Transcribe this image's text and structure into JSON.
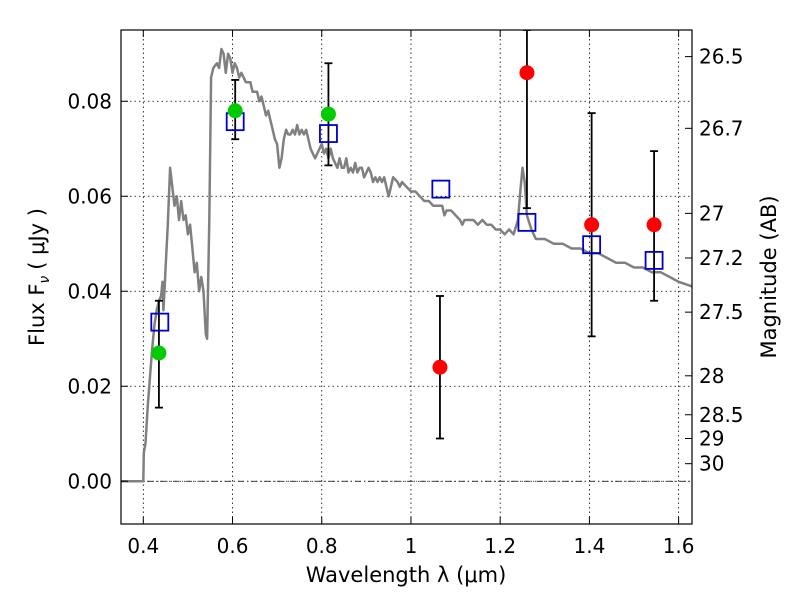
{
  "chart_data": {
    "type": "scatter",
    "xlabel": "Wavelength  λ (μm)",
    "ylabel": "Flux  F",
    "ylabel_sub": "ν",
    "ylabel_unit": "(  μJy )",
    "y2label": "Magnitude (AB)",
    "xlim": [
      0.35,
      1.63
    ],
    "ylim": [
      -0.009,
      0.095
    ],
    "xticks": [
      {
        "value": 0.4,
        "label": "0.4"
      },
      {
        "value": 0.6,
        "label": "0.6"
      },
      {
        "value": 0.8,
        "label": "0.8"
      },
      {
        "value": 1.0,
        "label": "1"
      },
      {
        "value": 1.2,
        "label": "1.2"
      },
      {
        "value": 1.4,
        "label": "1.4"
      },
      {
        "value": 1.6,
        "label": "1.6"
      }
    ],
    "yticks": [
      {
        "value": 0.0,
        "label": "0.00"
      },
      {
        "value": 0.02,
        "label": "0.02"
      },
      {
        "value": 0.04,
        "label": "0.04"
      },
      {
        "value": 0.06,
        "label": "0.06"
      },
      {
        "value": 0.08,
        "label": "0.08"
      }
    ],
    "y2ticks": [
      {
        "flux": 0.0894,
        "label": "26.5"
      },
      {
        "flux": 0.0743,
        "label": "26.7"
      },
      {
        "flux": 0.0564,
        "label": "27"
      },
      {
        "flux": 0.047,
        "label": "27.2"
      },
      {
        "flux": 0.0356,
        "label": "27.5"
      },
      {
        "flux": 0.0222,
        "label": "28"
      },
      {
        "flux": 0.014,
        "label": "28.5"
      },
      {
        "flux": 0.009,
        "label": "29"
      },
      {
        "flux": 0.0037,
        "label": "30"
      }
    ],
    "grid": true,
    "zero_line": true,
    "colors": {
      "model": "#808080",
      "detection": "#00cc00",
      "upper": "#ff0000",
      "model_flux": "#0000cc",
      "errorbar": "#000000"
    },
    "model_spectrum": [
      [
        0.35,
        0.0
      ],
      [
        0.39,
        0.0
      ],
      [
        0.4,
        0.0
      ],
      [
        0.401,
        0.006
      ],
      [
        0.405,
        0.008
      ],
      [
        0.41,
        0.016
      ],
      [
        0.415,
        0.022
      ],
      [
        0.42,
        0.028
      ],
      [
        0.425,
        0.033
      ],
      [
        0.43,
        0.036
      ],
      [
        0.435,
        0.038
      ],
      [
        0.44,
        0.039
      ],
      [
        0.443,
        0.042
      ],
      [
        0.445,
        0.036
      ],
      [
        0.448,
        0.041
      ],
      [
        0.45,
        0.045
      ],
      [
        0.455,
        0.054
      ],
      [
        0.46,
        0.066
      ],
      [
        0.465,
        0.062
      ],
      [
        0.47,
        0.058
      ],
      [
        0.475,
        0.06
      ],
      [
        0.48,
        0.055
      ],
      [
        0.485,
        0.059
      ],
      [
        0.49,
        0.055
      ],
      [
        0.495,
        0.056
      ],
      [
        0.5,
        0.052
      ],
      [
        0.505,
        0.054
      ],
      [
        0.51,
        0.049
      ],
      [
        0.515,
        0.044
      ],
      [
        0.52,
        0.046
      ],
      [
        0.525,
        0.04
      ],
      [
        0.53,
        0.043
      ],
      [
        0.535,
        0.04
      ],
      [
        0.54,
        0.031
      ],
      [
        0.543,
        0.03
      ],
      [
        0.548,
        0.055
      ],
      [
        0.552,
        0.085
      ],
      [
        0.557,
        0.087
      ],
      [
        0.565,
        0.088
      ],
      [
        0.57,
        0.087
      ],
      [
        0.575,
        0.091
      ],
      [
        0.58,
        0.09
      ],
      [
        0.585,
        0.086
      ],
      [
        0.59,
        0.09
      ],
      [
        0.595,
        0.089
      ],
      [
        0.6,
        0.086
      ],
      [
        0.605,
        0.088
      ],
      [
        0.61,
        0.087
      ],
      [
        0.615,
        0.085
      ],
      [
        0.62,
        0.086
      ],
      [
        0.63,
        0.084
      ],
      [
        0.64,
        0.084
      ],
      [
        0.645,
        0.082
      ],
      [
        0.655,
        0.082
      ],
      [
        0.66,
        0.08
      ],
      [
        0.665,
        0.081
      ],
      [
        0.67,
        0.079
      ],
      [
        0.675,
        0.077
      ],
      [
        0.68,
        0.078
      ],
      [
        0.685,
        0.076
      ],
      [
        0.69,
        0.074
      ],
      [
        0.695,
        0.072
      ],
      [
        0.7,
        0.071
      ],
      [
        0.705,
        0.066
      ],
      [
        0.71,
        0.068
      ],
      [
        0.715,
        0.072
      ],
      [
        0.72,
        0.074
      ],
      [
        0.725,
        0.073
      ],
      [
        0.73,
        0.073
      ],
      [
        0.735,
        0.074
      ],
      [
        0.74,
        0.073
      ],
      [
        0.745,
        0.075
      ],
      [
        0.75,
        0.073
      ],
      [
        0.755,
        0.074
      ],
      [
        0.76,
        0.073
      ],
      [
        0.765,
        0.074
      ],
      [
        0.77,
        0.072
      ],
      [
        0.775,
        0.07
      ],
      [
        0.78,
        0.069
      ],
      [
        0.785,
        0.068
      ],
      [
        0.79,
        0.069
      ],
      [
        0.8,
        0.071
      ],
      [
        0.805,
        0.069
      ],
      [
        0.81,
        0.07
      ],
      [
        0.815,
        0.068
      ],
      [
        0.82,
        0.07
      ],
      [
        0.825,
        0.068
      ],
      [
        0.83,
        0.067
      ],
      [
        0.835,
        0.066
      ],
      [
        0.84,
        0.068
      ],
      [
        0.845,
        0.066
      ],
      [
        0.85,
        0.066
      ],
      [
        0.855,
        0.068
      ],
      [
        0.86,
        0.065
      ],
      [
        0.865,
        0.066
      ],
      [
        0.87,
        0.065
      ],
      [
        0.875,
        0.067
      ],
      [
        0.88,
        0.065
      ],
      [
        0.885,
        0.066
      ],
      [
        0.89,
        0.066
      ],
      [
        0.895,
        0.064
      ],
      [
        0.9,
        0.065
      ],
      [
        0.905,
        0.066
      ],
      [
        0.91,
        0.065
      ],
      [
        0.915,
        0.063
      ],
      [
        0.92,
        0.064
      ],
      [
        0.925,
        0.063
      ],
      [
        0.93,
        0.064
      ],
      [
        0.935,
        0.063
      ],
      [
        0.94,
        0.064
      ],
      [
        0.945,
        0.062
      ],
      [
        0.95,
        0.06
      ],
      [
        0.955,
        0.062
      ],
      [
        0.96,
        0.064
      ],
      [
        0.97,
        0.063
      ],
      [
        0.975,
        0.062
      ],
      [
        0.98,
        0.063
      ],
      [
        0.99,
        0.062
      ],
      [
        1.0,
        0.061
      ],
      [
        1.01,
        0.061
      ],
      [
        1.02,
        0.06
      ],
      [
        1.03,
        0.059
      ],
      [
        1.04,
        0.059
      ],
      [
        1.05,
        0.058
      ],
      [
        1.06,
        0.058
      ],
      [
        1.07,
        0.058
      ],
      [
        1.075,
        0.056
      ],
      [
        1.08,
        0.057
      ],
      [
        1.09,
        0.057
      ],
      [
        1.1,
        0.056
      ],
      [
        1.11,
        0.055
      ],
      [
        1.115,
        0.054
      ],
      [
        1.12,
        0.055
      ],
      [
        1.13,
        0.055
      ],
      [
        1.14,
        0.055
      ],
      [
        1.15,
        0.054
      ],
      [
        1.16,
        0.055
      ],
      [
        1.17,
        0.054
      ],
      [
        1.18,
        0.054
      ],
      [
        1.19,
        0.053
      ],
      [
        1.2,
        0.053
      ],
      [
        1.21,
        0.052
      ],
      [
        1.22,
        0.053
      ],
      [
        1.23,
        0.052
      ],
      [
        1.24,
        0.055
      ],
      [
        1.245,
        0.061
      ],
      [
        1.25,
        0.066
      ],
      [
        1.255,
        0.063
      ],
      [
        1.26,
        0.056
      ],
      [
        1.27,
        0.053
      ],
      [
        1.28,
        0.051
      ],
      [
        1.3,
        0.051
      ],
      [
        1.32,
        0.05
      ],
      [
        1.34,
        0.05
      ],
      [
        1.36,
        0.049
      ],
      [
        1.38,
        0.049
      ],
      [
        1.4,
        0.048
      ],
      [
        1.42,
        0.048
      ],
      [
        1.44,
        0.047
      ],
      [
        1.46,
        0.046
      ],
      [
        1.48,
        0.046
      ],
      [
        1.5,
        0.045
      ],
      [
        1.52,
        0.045
      ],
      [
        1.54,
        0.044
      ],
      [
        1.56,
        0.044
      ],
      [
        1.58,
        0.043
      ],
      [
        1.6,
        0.042
      ],
      [
        1.615,
        0.0415
      ],
      [
        1.63,
        0.041
      ]
    ],
    "detections": [
      {
        "x": 0.435,
        "y": 0.027,
        "err_low": 0.0155,
        "err_high": 0.038
      },
      {
        "x": 0.606,
        "y": 0.078,
        "err_low": 0.072,
        "err_high": 0.0845
      },
      {
        "x": 0.815,
        "y": 0.0773,
        "err_low": 0.0665,
        "err_high": 0.088
      }
    ],
    "upper_limits": [
      {
        "x": 1.065,
        "y": 0.024,
        "err_low": 0.009,
        "err_high": 0.039
      },
      {
        "x": 1.26,
        "y": 0.086,
        "err_low": 0.0575,
        "err_high": 0.095
      },
      {
        "x": 1.405,
        "y": 0.054,
        "err_low": 0.0305,
        "err_high": 0.0775
      },
      {
        "x": 1.545,
        "y": 0.054,
        "err_low": 0.038,
        "err_high": 0.0695
      }
    ],
    "model_flux": [
      {
        "x": 0.437,
        "y": 0.0335
      },
      {
        "x": 0.606,
        "y": 0.0757
      },
      {
        "x": 0.815,
        "y": 0.0732
      },
      {
        "x": 1.067,
        "y": 0.0615
      },
      {
        "x": 1.26,
        "y": 0.0545
      },
      {
        "x": 1.405,
        "y": 0.0498
      },
      {
        "x": 1.545,
        "y": 0.0465
      }
    ]
  }
}
